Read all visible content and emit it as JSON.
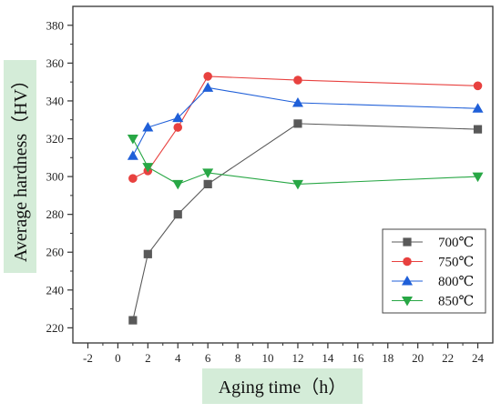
{
  "chart_data": {
    "type": "line",
    "title": "",
    "xlabel": "Aging time（h）",
    "ylabel": "Average hardness（HV）",
    "xlim": [
      -3,
      25
    ],
    "ylim": [
      212,
      390
    ],
    "xticks": [
      -2,
      0,
      2,
      4,
      6,
      8,
      10,
      12,
      14,
      16,
      18,
      20,
      22,
      24
    ],
    "yticks": [
      220,
      240,
      260,
      280,
      300,
      320,
      340,
      360,
      380
    ],
    "grid": false,
    "legend_position": "bottom-right",
    "series": [
      {
        "name": "700℃",
        "color": "#595959",
        "marker": "square",
        "x": [
          1,
          2,
          4,
          6,
          12,
          24
        ],
        "y": [
          224,
          259,
          280,
          296,
          328,
          325
        ]
      },
      {
        "name": "750℃",
        "color": "#e8413f",
        "marker": "circle",
        "x": [
          1,
          2,
          4,
          6,
          12,
          24
        ],
        "y": [
          299,
          303,
          326,
          353,
          351,
          348
        ]
      },
      {
        "name": "800℃",
        "color": "#1f5fd8",
        "marker": "triangle-up",
        "x": [
          1,
          2,
          4,
          6,
          12,
          24
        ],
        "y": [
          311,
          326,
          331,
          347,
          339,
          336
        ]
      },
      {
        "name": "850℃",
        "color": "#28a745",
        "marker": "triangle-down",
        "x": [
          1,
          2,
          4,
          6,
          12,
          24
        ],
        "y": [
          320,
          305,
          296,
          302,
          296,
          300
        ]
      }
    ]
  },
  "colors": {
    "label_highlight": "#d4ecd8",
    "axis": "#333333"
  }
}
